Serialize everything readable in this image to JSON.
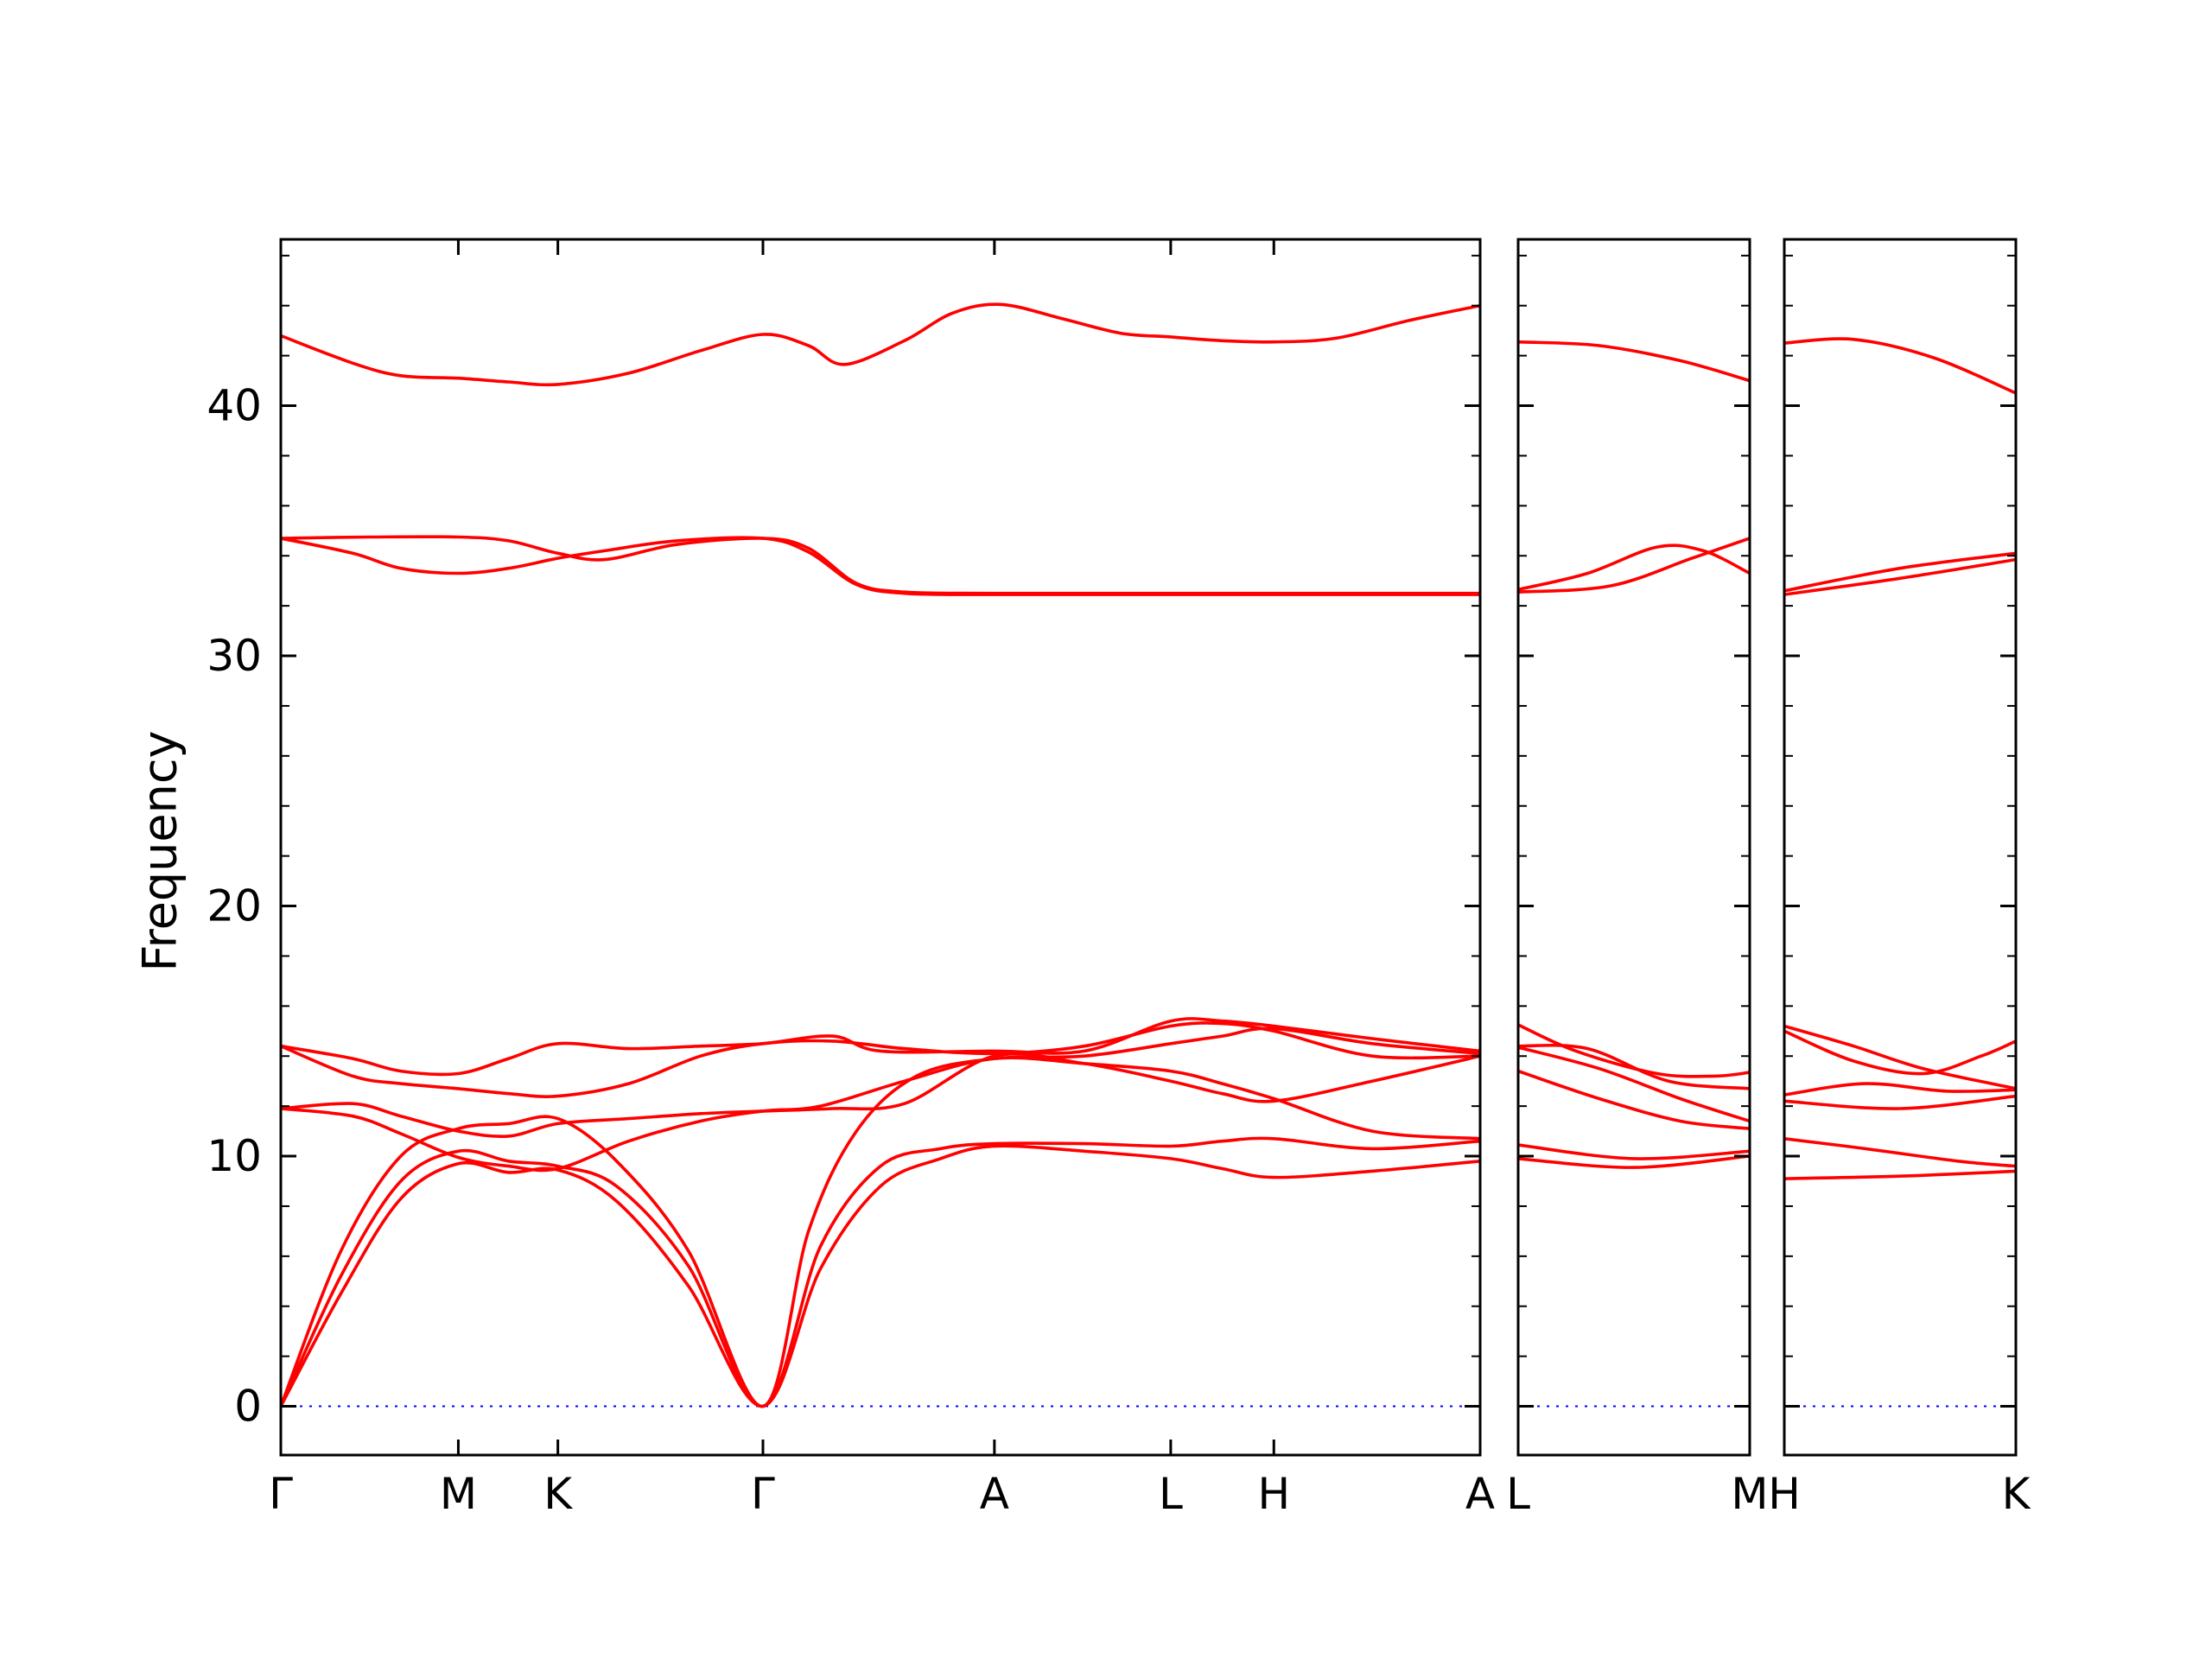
{
  "chart_data": {
    "type": "line",
    "title": "",
    "ylabel": "Frequency",
    "ylim": [
      -1.95,
      46.65
    ],
    "yticks": [
      0,
      10,
      20,
      30,
      40
    ],
    "ytick_labels": [
      "0",
      "10",
      "20",
      "30",
      "40"
    ],
    "minor_ytick_step": 2,
    "grid": false,
    "legend_position": "none",
    "band_color": "#ff0000",
    "axis_color": "#000000",
    "zero_line": {
      "y": 0,
      "color": "#0000ff",
      "style": "dotted"
    },
    "panels": [
      {
        "name": "Gamma-M-K-Gamma-A-L-H-A",
        "width_ratio": 5.18,
        "xticks": [
          {
            "pos": 0.0,
            "label": "Γ"
          },
          {
            "pos": 0.148,
            "label": "M"
          },
          {
            "pos": 0.231,
            "label": "K"
          },
          {
            "pos": 0.402,
            "label": "Γ"
          },
          {
            "pos": 0.595,
            "label": "A"
          },
          {
            "pos": 0.742,
            "label": "L"
          },
          {
            "pos": 0.828,
            "label": "H"
          },
          {
            "pos": 1.0,
            "label": "A"
          }
        ],
        "bands": [
          [
            [
              0,
              0
            ],
            [
              0.05,
              4.5
            ],
            [
              0.1,
              8.3
            ],
            [
              0.148,
              9.7
            ],
            [
              0.19,
              9.35
            ],
            [
              0.231,
              9.45
            ],
            [
              0.28,
              8.2
            ],
            [
              0.34,
              4.8
            ],
            [
              0.402,
              0
            ],
            [
              0.45,
              5.5
            ],
            [
              0.5,
              8.8
            ],
            [
              0.55,
              9.9
            ],
            [
              0.595,
              10.4
            ],
            [
              0.67,
              10.2
            ],
            [
              0.742,
              9.9
            ],
            [
              0.785,
              9.5
            ],
            [
              0.828,
              9.15
            ],
            [
              0.91,
              9.4
            ],
            [
              1,
              9.8
            ]
          ],
          [
            [
              0,
              0
            ],
            [
              0.05,
              5.2
            ],
            [
              0.1,
              9.0
            ],
            [
              0.148,
              10.2
            ],
            [
              0.19,
              9.8
            ],
            [
              0.231,
              9.6
            ],
            [
              0.28,
              8.8
            ],
            [
              0.34,
              5.6
            ],
            [
              0.402,
              0
            ],
            [
              0.45,
              6.4
            ],
            [
              0.5,
              9.6
            ],
            [
              0.55,
              10.3
            ],
            [
              0.595,
              10.5
            ],
            [
              0.67,
              10.5
            ],
            [
              0.742,
              10.4
            ],
            [
              0.785,
              10.6
            ],
            [
              0.828,
              10.7
            ],
            [
              0.91,
              10.3
            ],
            [
              1,
              10.6
            ]
          ],
          [
            [
              0,
              0
            ],
            [
              0.05,
              6.2
            ],
            [
              0.1,
              10.0
            ],
            [
              0.148,
              11.1
            ],
            [
              0.19,
              11.3
            ],
            [
              0.231,
              11.5
            ],
            [
              0.28,
              9.8
            ],
            [
              0.34,
              6.2
            ],
            [
              0.402,
              0
            ],
            [
              0.44,
              7.0
            ],
            [
              0.48,
              11.0
            ],
            [
              0.53,
              13.2
            ],
            [
              0.595,
              13.9
            ],
            [
              0.67,
              14.0
            ],
            [
              0.742,
              14.5
            ],
            [
              0.785,
              14.8
            ],
            [
              0.828,
              15.1
            ],
            [
              0.91,
              14.5
            ],
            [
              1,
              14.1
            ]
          ],
          [
            [
              0,
              11.9
            ],
            [
              0.06,
              11.6
            ],
            [
              0.1,
              10.9
            ],
            [
              0.148,
              9.95
            ],
            [
              0.19,
              9.6
            ],
            [
              0.231,
              9.5
            ],
            [
              0.29,
              10.6
            ],
            [
              0.35,
              11.4
            ],
            [
              0.402,
              11.8
            ],
            [
              0.45,
              12.0
            ],
            [
              0.52,
              13.0
            ],
            [
              0.595,
              13.9
            ],
            [
              0.67,
              13.7
            ],
            [
              0.742,
              13.4
            ],
            [
              0.785,
              12.9
            ],
            [
              0.828,
              12.3
            ],
            [
              0.91,
              11.0
            ],
            [
              1,
              10.7
            ]
          ],
          [
            [
              0,
              11.9
            ],
            [
              0.06,
              12.1
            ],
            [
              0.1,
              11.6
            ],
            [
              0.148,
              11.0
            ],
            [
              0.19,
              10.8
            ],
            [
              0.231,
              11.3
            ],
            [
              0.29,
              11.5
            ],
            [
              0.35,
              11.7
            ],
            [
              0.402,
              11.8
            ],
            [
              0.46,
              11.9
            ],
            [
              0.52,
              12.1
            ],
            [
              0.595,
              14.0
            ],
            [
              0.67,
              13.7
            ],
            [
              0.742,
              13.0
            ],
            [
              0.785,
              12.5
            ],
            [
              0.828,
              12.2
            ],
            [
              0.91,
              13.0
            ],
            [
              1,
              14.0
            ]
          ],
          [
            [
              0,
              14.4
            ],
            [
              0.06,
              13.2
            ],
            [
              0.1,
              12.9
            ],
            [
              0.148,
              12.7
            ],
            [
              0.19,
              12.5
            ],
            [
              0.231,
              12.4
            ],
            [
              0.29,
              12.9
            ],
            [
              0.35,
              14.0
            ],
            [
              0.402,
              14.5
            ],
            [
              0.46,
              14.6
            ],
            [
              0.52,
              14.3
            ],
            [
              0.595,
              14.1
            ],
            [
              0.67,
              14.4
            ],
            [
              0.742,
              15.2
            ],
            [
              0.785,
              15.3
            ],
            [
              0.828,
              15.0
            ],
            [
              0.91,
              14.0
            ],
            [
              1,
              14.0
            ]
          ],
          [
            [
              0,
              14.4
            ],
            [
              0.06,
              13.9
            ],
            [
              0.1,
              13.4
            ],
            [
              0.148,
              13.3
            ],
            [
              0.19,
              13.9
            ],
            [
              0.231,
              14.5
            ],
            [
              0.29,
              14.3
            ],
            [
              0.35,
              14.4
            ],
            [
              0.402,
              14.5
            ],
            [
              0.46,
              14.8
            ],
            [
              0.5,
              14.2
            ],
            [
              0.595,
              14.2
            ],
            [
              0.67,
              14.2
            ],
            [
              0.742,
              15.4
            ],
            [
              0.785,
              15.4
            ],
            [
              0.828,
              15.2
            ],
            [
              0.91,
              14.7
            ],
            [
              1,
              14.2
            ]
          ],
          [
            [
              0,
              34.7
            ],
            [
              0.074,
              34.75
            ],
            [
              0.148,
              34.75
            ],
            [
              0.19,
              34.6
            ],
            [
              0.231,
              34.1
            ],
            [
              0.27,
              33.85
            ],
            [
              0.33,
              34.45
            ],
            [
              0.402,
              34.7
            ],
            [
              0.44,
              34.3
            ],
            [
              0.48,
              32.9
            ],
            [
              0.52,
              32.55
            ],
            [
              0.595,
              32.5
            ],
            [
              0.7,
              32.5
            ],
            [
              0.828,
              32.5
            ],
            [
              1,
              32.5
            ]
          ],
          [
            [
              0,
              34.7
            ],
            [
              0.06,
              34.1
            ],
            [
              0.1,
              33.5
            ],
            [
              0.148,
              33.3
            ],
            [
              0.19,
              33.5
            ],
            [
              0.231,
              33.9
            ],
            [
              0.27,
              34.2
            ],
            [
              0.33,
              34.6
            ],
            [
              0.402,
              34.7
            ],
            [
              0.44,
              34.15
            ],
            [
              0.48,
              32.85
            ],
            [
              0.52,
              32.5
            ],
            [
              0.595,
              32.45
            ],
            [
              0.7,
              32.45
            ],
            [
              0.828,
              32.45
            ],
            [
              1,
              32.45
            ]
          ],
          [
            [
              0,
              42.8
            ],
            [
              0.06,
              41.7
            ],
            [
              0.1,
              41.2
            ],
            [
              0.148,
              41.1
            ],
            [
              0.19,
              40.95
            ],
            [
              0.231,
              40.85
            ],
            [
              0.29,
              41.3
            ],
            [
              0.35,
              42.2
            ],
            [
              0.402,
              42.85
            ],
            [
              0.44,
              42.4
            ],
            [
              0.47,
              41.65
            ],
            [
              0.52,
              42.6
            ],
            [
              0.56,
              43.7
            ],
            [
              0.6,
              44.05
            ],
            [
              0.65,
              43.5
            ],
            [
              0.7,
              42.9
            ],
            [
              0.742,
              42.75
            ],
            [
              0.785,
              42.6
            ],
            [
              0.828,
              42.55
            ],
            [
              0.88,
              42.7
            ],
            [
              0.94,
              43.4
            ],
            [
              1,
              44.0
            ]
          ]
        ]
      },
      {
        "name": "L-M",
        "width_ratio": 1,
        "xticks": [
          {
            "pos": 0.0,
            "label": "L"
          },
          {
            "pos": 1.0,
            "label": "M"
          }
        ],
        "bands": [
          [
            [
              0,
              9.9
            ],
            [
              0.5,
              9.55
            ],
            [
              1,
              10.0
            ]
          ],
          [
            [
              0,
              10.45
            ],
            [
              0.5,
              9.9
            ],
            [
              1,
              10.2
            ]
          ],
          [
            [
              0,
              13.4
            ],
            [
              0.35,
              12.3
            ],
            [
              0.7,
              11.4
            ],
            [
              1,
              11.1
            ]
          ],
          [
            [
              0,
              14.4
            ],
            [
              0.3,
              14.3
            ],
            [
              0.65,
              13.0
            ],
            [
              1,
              12.7
            ]
          ],
          [
            [
              0,
              15.25
            ],
            [
              0.25,
              14.2
            ],
            [
              0.6,
              13.3
            ],
            [
              0.85,
              13.2
            ],
            [
              1,
              13.35
            ]
          ],
          [
            [
              0,
              14.35
            ],
            [
              0.35,
              13.5
            ],
            [
              0.7,
              12.3
            ],
            [
              1,
              11.4
            ]
          ],
          [
            [
              0,
              32.55
            ],
            [
              0.4,
              32.8
            ],
            [
              0.75,
              33.9
            ],
            [
              1,
              34.7
            ]
          ],
          [
            [
              0,
              32.65
            ],
            [
              0.3,
              33.3
            ],
            [
              0.6,
              34.35
            ],
            [
              0.8,
              34.2
            ],
            [
              1,
              33.3
            ]
          ],
          [
            [
              0,
              42.55
            ],
            [
              0.35,
              42.4
            ],
            [
              0.7,
              41.8
            ],
            [
              1,
              41.0
            ]
          ]
        ]
      },
      {
        "name": "H-K",
        "width_ratio": 1,
        "xticks": [
          {
            "pos": 0.0,
            "label": "H"
          },
          {
            "pos": 1.0,
            "label": "K"
          }
        ],
        "bands": [
          [
            [
              0,
              9.1
            ],
            [
              0.5,
              9.2
            ],
            [
              1,
              9.4
            ]
          ],
          [
            [
              0,
              10.7
            ],
            [
              0.35,
              10.3
            ],
            [
              0.75,
              9.8
            ],
            [
              1,
              9.6
            ]
          ],
          [
            [
              0,
              12.2
            ],
            [
              0.5,
              11.9
            ],
            [
              1,
              12.4
            ]
          ],
          [
            [
              0,
              12.45
            ],
            [
              0.35,
              12.9
            ],
            [
              0.7,
              12.6
            ],
            [
              1,
              12.65
            ]
          ],
          [
            [
              0,
              15.0
            ],
            [
              0.3,
              13.8
            ],
            [
              0.6,
              13.3
            ],
            [
              0.85,
              14.0
            ],
            [
              1,
              14.6
            ]
          ],
          [
            [
              0,
              15.2
            ],
            [
              0.3,
              14.4
            ],
            [
              0.6,
              13.5
            ],
            [
              1,
              12.7
            ]
          ],
          [
            [
              0,
              32.45
            ],
            [
              0.5,
              33.1
            ],
            [
              1,
              33.85
            ]
          ],
          [
            [
              0,
              32.6
            ],
            [
              0.5,
              33.5
            ],
            [
              1,
              34.1
            ]
          ],
          [
            [
              0,
              42.5
            ],
            [
              0.3,
              42.65
            ],
            [
              0.65,
              41.9
            ],
            [
              1,
              40.5
            ]
          ]
        ]
      }
    ]
  }
}
